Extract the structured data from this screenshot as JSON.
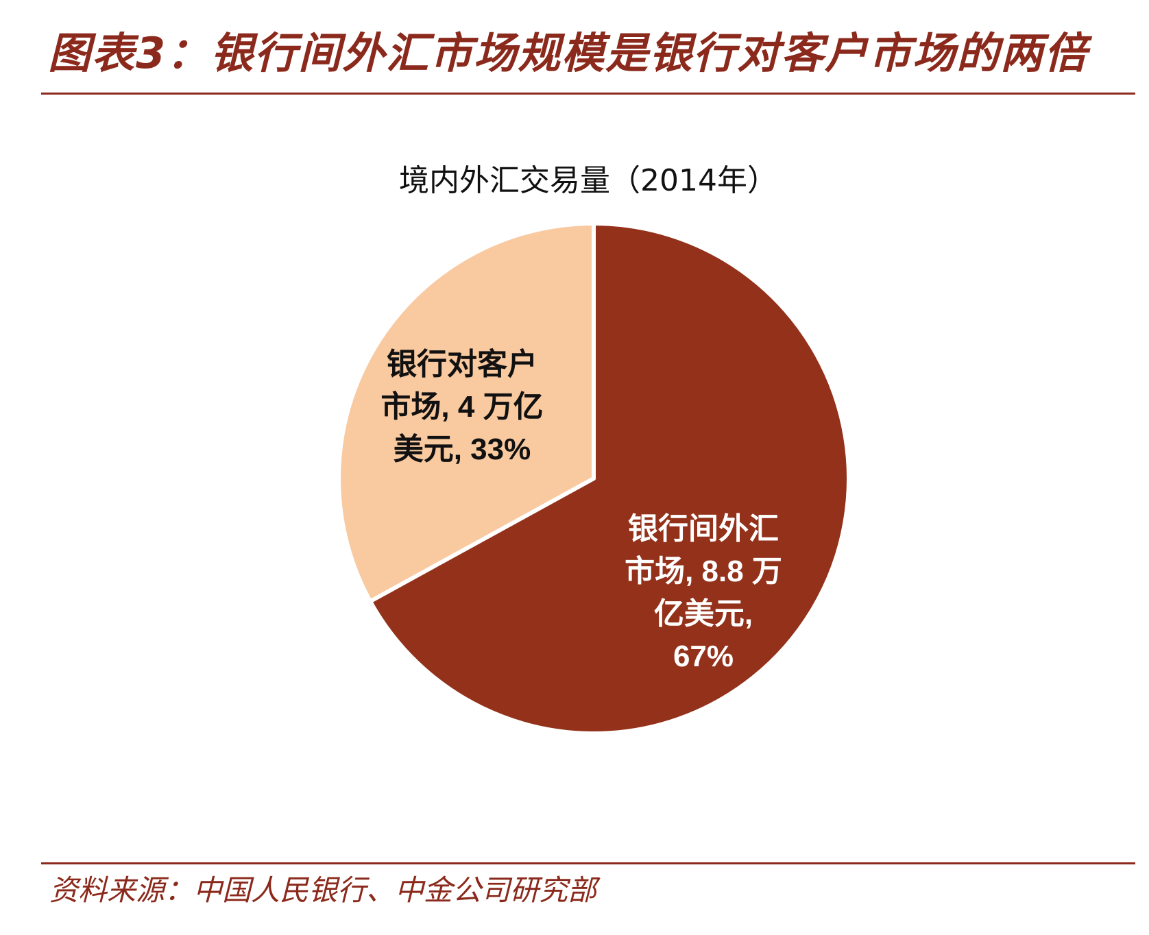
{
  "header": {
    "figure_title": "图表3：银行间外汇市场规模是银行对客户市场的两倍"
  },
  "chart_data": {
    "type": "pie",
    "title": "境内外汇交易量（2014年）",
    "slices": [
      {
        "name": "银行间外汇市场",
        "value": 8.8,
        "unit": "万亿美元",
        "percent": 67,
        "color": "#93311a",
        "label_color": "#ffffff",
        "label_lines": [
          "银行间外汇",
          "市场, 8.8 万",
          "亿美元,",
          "67%"
        ]
      },
      {
        "name": "银行对客户市场",
        "value": 4,
        "unit": "万亿美元",
        "percent": 33,
        "color": "#f9c9a0",
        "label_color": "#111111",
        "label_lines": [
          "银行对客户",
          "市场, 4 万亿",
          "美元, 33%"
        ]
      }
    ]
  },
  "footer": {
    "source": "资料来源：中国人民银行、中金公司研究部"
  }
}
